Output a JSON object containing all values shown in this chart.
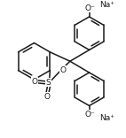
{
  "background_color": "#ffffff",
  "line_color": "#1a1a1a",
  "figsize": [
    1.42,
    1.56
  ],
  "dpi": 100,
  "na1_label": "Na⁺",
  "na2_label": "Na⁺",
  "o1_label": "O⁻",
  "o2_label": "O⁻",
  "lw": 1.1,
  "font_size_label": 6.5,
  "font_size_na": 6.5
}
